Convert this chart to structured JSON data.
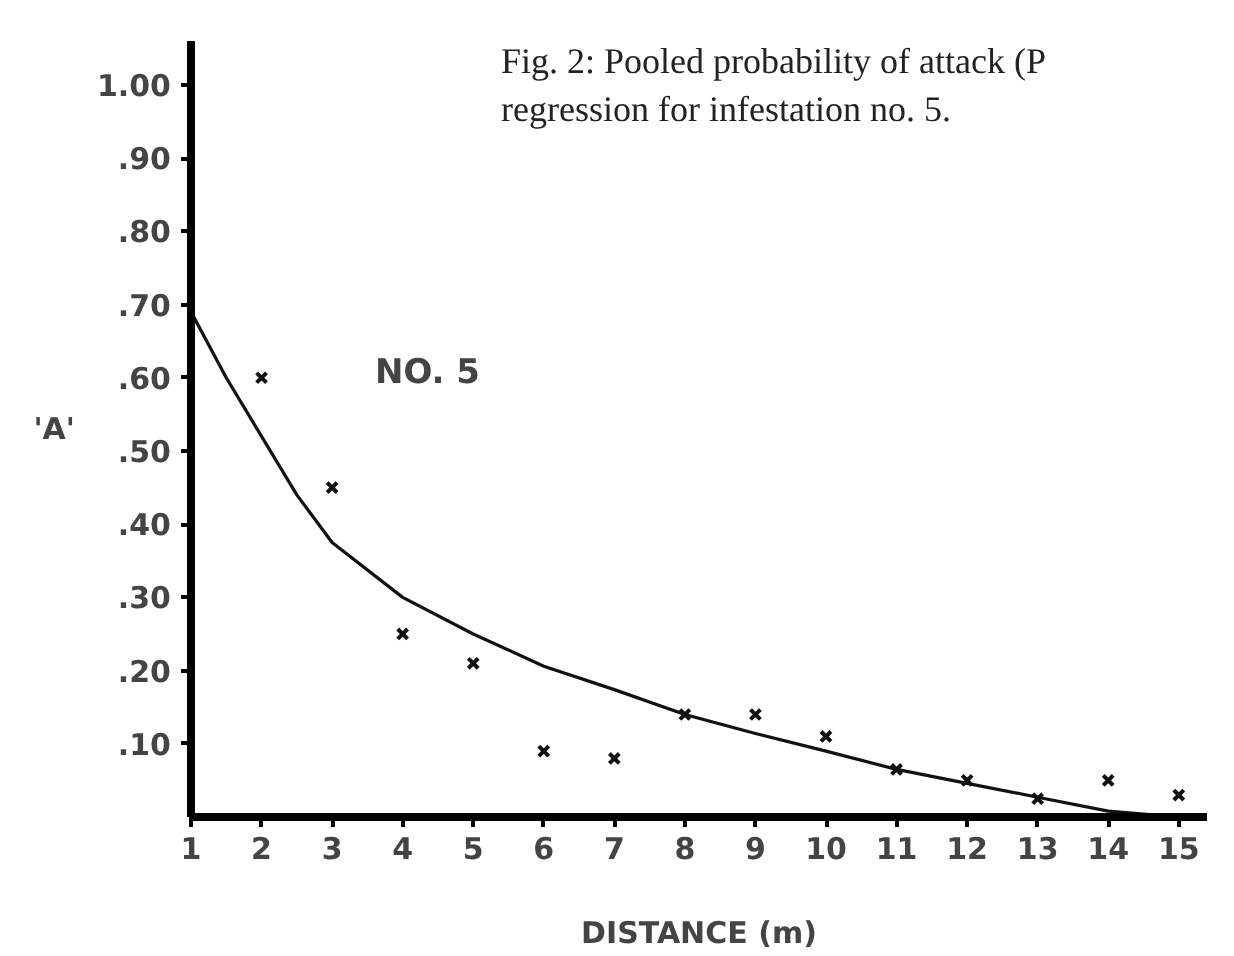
{
  "chart_data": {
    "type": "scatter",
    "title": "Fig. 2: Pooled probability of attack (P\nregression for infestation no. 5.",
    "xlabel": "DISTANCE (m)",
    "ylabel": "'A'",
    "annotations": [
      "NO.  5"
    ],
    "series": [
      {
        "marker": "cross",
        "color": "#111111",
        "x": [
          2,
          3,
          4,
          5,
          6,
          7,
          8,
          9,
          10,
          11,
          12,
          13,
          14,
          15
        ],
        "values": [
          0.6,
          0.45,
          0.25,
          0.21,
          0.09,
          0.08,
          0.14,
          0.14,
          0.11,
          0.065,
          0.05,
          0.025,
          0.05,
          0.03
        ]
      },
      {
        "type": "line",
        "line_style": "solid",
        "color": "#111111",
        "x": [
          1,
          1.5,
          2,
          2.5,
          3,
          4,
          5,
          6,
          7,
          8,
          9,
          10,
          11,
          12,
          13,
          14,
          15
        ],
        "values": [
          0.69,
          0.6,
          0.52,
          0.44,
          0.375,
          0.3,
          0.25,
          0.206,
          0.174,
          0.14,
          0.114,
          0.09,
          0.065,
          0.046,
          0.027,
          0.008,
          0.0
        ]
      }
    ],
    "xlim": [
      1,
      15.4
    ],
    "ylim": [
      0,
      1.06
    ],
    "xticks": [
      1,
      2,
      3,
      4,
      5,
      6,
      7,
      8,
      9,
      10,
      11,
      12,
      13,
      14,
      15
    ],
    "yticks": [
      {
        "value": 0.1,
        "label": ".10"
      },
      {
        "value": 0.2,
        "label": ".20"
      },
      {
        "value": 0.3,
        "label": ".30"
      },
      {
        "value": 0.4,
        "label": ".40"
      },
      {
        "value": 0.5,
        "label": ".50"
      },
      {
        "value": 0.6,
        "label": ".60"
      },
      {
        "value": 0.7,
        "label": ".70"
      },
      {
        "value": 0.8,
        "label": ".80"
      },
      {
        "value": 0.9,
        "label": ".90"
      },
      {
        "value": 1.0,
        "label": "1.00"
      }
    ],
    "grid": false
  }
}
